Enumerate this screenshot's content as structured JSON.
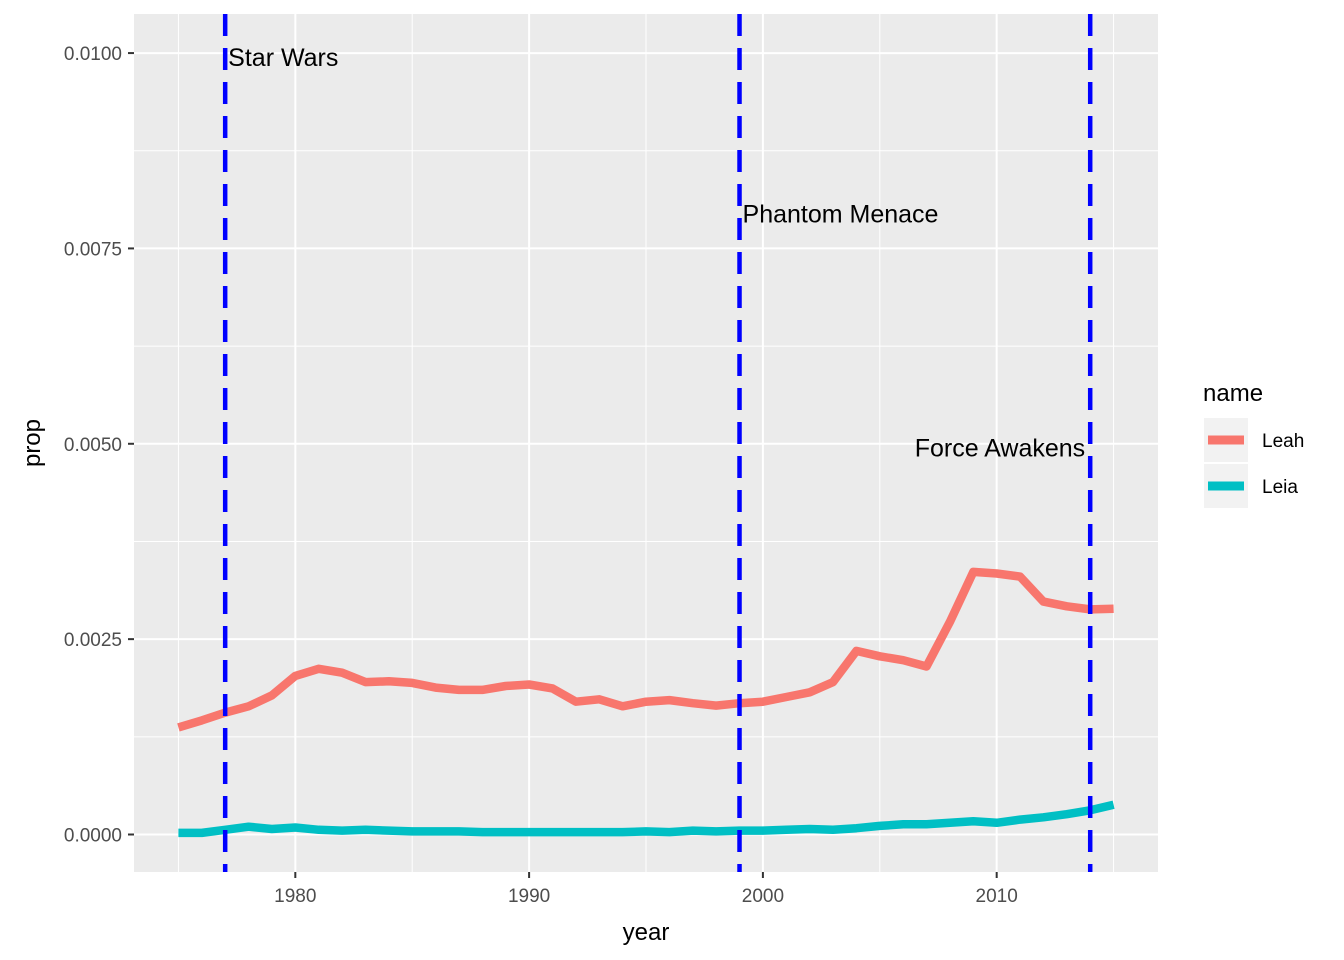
{
  "chart_data": {
    "type": "line",
    "xlabel": "year",
    "ylabel": "prop",
    "xlim": [
      1973.1,
      2016.9
    ],
    "ylim": [
      -0.00048,
      0.0105
    ],
    "x_ticks": [
      1980,
      1990,
      2000,
      2010
    ],
    "x_tick_labels": [
      "1980",
      "1990",
      "2000",
      "2010"
    ],
    "y_ticks": [
      0,
      0.0025,
      0.005,
      0.0075,
      0.01
    ],
    "y_tick_labels": [
      "0.0000",
      "0.0025",
      "0.0050",
      "0.0075",
      "0.0100"
    ],
    "grid": true,
    "legend": {
      "title": "name",
      "position": "right"
    },
    "series": [
      {
        "name": "Leah",
        "color": "#F8766D",
        "x": [
          1975,
          1976,
          1977,
          1978,
          1979,
          1980,
          1981,
          1982,
          1983,
          1984,
          1985,
          1986,
          1987,
          1988,
          1989,
          1990,
          1991,
          1992,
          1993,
          1994,
          1995,
          1996,
          1997,
          1998,
          1999,
          2000,
          2001,
          2002,
          2003,
          2004,
          2005,
          2006,
          2007,
          2008,
          2009,
          2010,
          2011,
          2012,
          2013,
          2014,
          2015
        ],
        "values": [
          0.00137,
          0.00146,
          0.00156,
          0.00164,
          0.00178,
          0.00203,
          0.00212,
          0.00207,
          0.00195,
          0.00196,
          0.00194,
          0.00188,
          0.00185,
          0.00185,
          0.0019,
          0.00192,
          0.00187,
          0.0017,
          0.00173,
          0.00164,
          0.0017,
          0.00172,
          0.00168,
          0.00165,
          0.00168,
          0.0017,
          0.00176,
          0.00182,
          0.00195,
          0.00235,
          0.00228,
          0.00223,
          0.00215,
          0.00272,
          0.00336,
          0.00334,
          0.0033,
          0.00298,
          0.00292,
          0.00288,
          0.00289
        ]
      },
      {
        "name": "Leia",
        "color": "#00BFC4",
        "x": [
          1975,
          1976,
          1977,
          1978,
          1979,
          1980,
          1981,
          1982,
          1983,
          1984,
          1985,
          1986,
          1987,
          1988,
          1989,
          1990,
          1991,
          1992,
          1993,
          1994,
          1995,
          1996,
          1997,
          1998,
          1999,
          2000,
          2001,
          2002,
          2003,
          2004,
          2005,
          2006,
          2007,
          2008,
          2009,
          2010,
          2011,
          2012,
          2013,
          2014,
          2015
        ],
        "values": [
          2e-05,
          2e-05,
          6e-05,
          0.0001,
          7e-05,
          9e-05,
          6e-05,
          5e-05,
          6e-05,
          5e-05,
          4e-05,
          4e-05,
          4e-05,
          3e-05,
          3e-05,
          3e-05,
          3e-05,
          3e-05,
          3e-05,
          3e-05,
          4e-05,
          3e-05,
          5e-05,
          4e-05,
          5e-05,
          5e-05,
          6e-05,
          7e-05,
          6e-05,
          8e-05,
          0.00011,
          0.00013,
          0.00013,
          0.00015,
          0.00017,
          0.00015,
          0.00019,
          0.00022,
          0.00026,
          0.00031,
          0.00038
        ]
      }
    ],
    "vlines": [
      {
        "x": 1977,
        "label": "Star Wars",
        "label_y": 0.00995,
        "anchor": "start"
      },
      {
        "x": 1999,
        "label": "Phantom Menace",
        "label_y": 0.00795,
        "anchor": "start"
      },
      {
        "x": 2014,
        "label": "Force Awakens",
        "label_y": 0.00495,
        "anchor": "end"
      }
    ],
    "vline_color": "#0000FF"
  }
}
